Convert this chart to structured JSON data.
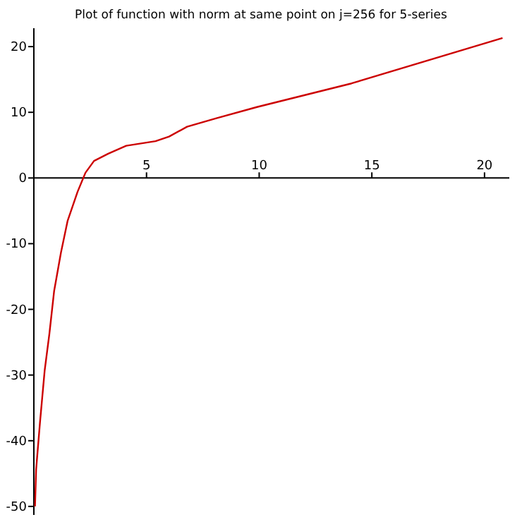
{
  "chart_data": {
    "type": "line",
    "title": "Plot of function with norm at same point on j=256 for 5-series",
    "xlim": [
      0,
      21.1
    ],
    "ylim": [
      -51.3,
      22.8
    ],
    "xticks": [
      5,
      10,
      15,
      20
    ],
    "yticks": [
      -50,
      -40,
      -30,
      -20,
      -10,
      0,
      10,
      20
    ],
    "series": [
      {
        "color": "#cc0000",
        "x": [
          0.05,
          0.1,
          0.27,
          0.48,
          0.69,
          0.9,
          1.2,
          1.5,
          1.94,
          2.29,
          2.67,
          3.3,
          4.1,
          5.4,
          6,
          6.8,
          8.1,
          9.9,
          14.1,
          20.8
        ],
        "values": [
          -50,
          -44.4,
          -37.3,
          -29.3,
          -23.7,
          -17.2,
          -11.4,
          -6.5,
          -2.1,
          0.8,
          2.6,
          3.7,
          4.9,
          5.6,
          6.3,
          7.8,
          9.1,
          10.8,
          14.4,
          21.3
        ]
      }
    ],
    "grid": false,
    "marker": "none",
    "line_style": "solid"
  }
}
